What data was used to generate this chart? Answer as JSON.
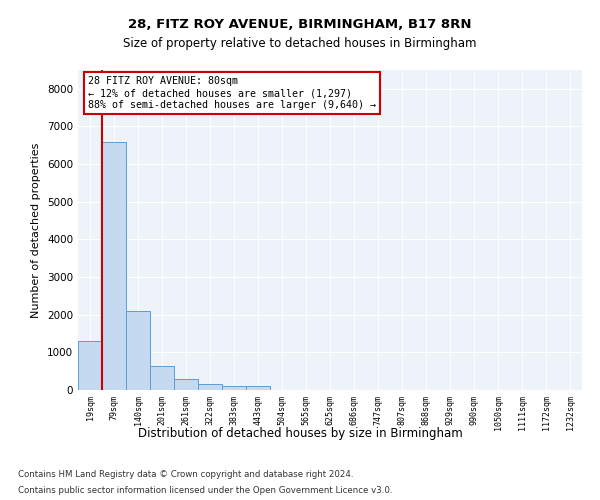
{
  "title1": "28, FITZ ROY AVENUE, BIRMINGHAM, B17 8RN",
  "title2": "Size of property relative to detached houses in Birmingham",
  "xlabel": "Distribution of detached houses by size in Birmingham",
  "ylabel": "Number of detached properties",
  "footer1": "Contains HM Land Registry data © Crown copyright and database right 2024.",
  "footer2": "Contains public sector information licensed under the Open Government Licence v3.0.",
  "annotation_line1": "28 FITZ ROY AVENUE: 80sqm",
  "annotation_line2": "← 12% of detached houses are smaller (1,297)",
  "annotation_line3": "88% of semi-detached houses are larger (9,640) →",
  "bar_color": "#c5d9f0",
  "bar_edge_color": "#5a9fd4",
  "vline_color": "#cc0000",
  "annotation_box_edge_color": "#cc0000",
  "background_color": "#eef2f9",
  "grid_color": "#ffffff",
  "categories": [
    "19sqm",
    "79sqm",
    "140sqm",
    "201sqm",
    "261sqm",
    "322sqm",
    "383sqm",
    "443sqm",
    "504sqm",
    "565sqm",
    "625sqm",
    "686sqm",
    "747sqm",
    "807sqm",
    "868sqm",
    "929sqm",
    "990sqm",
    "1050sqm",
    "1111sqm",
    "1172sqm",
    "1232sqm"
  ],
  "values": [
    1300,
    6600,
    2100,
    650,
    300,
    150,
    100,
    100,
    0,
    0,
    0,
    0,
    0,
    0,
    0,
    0,
    0,
    0,
    0,
    0,
    0
  ],
  "ylim": [
    0,
    8500
  ],
  "yticks": [
    0,
    1000,
    2000,
    3000,
    4000,
    5000,
    6000,
    7000,
    8000
  ],
  "vline_x_index": 1
}
